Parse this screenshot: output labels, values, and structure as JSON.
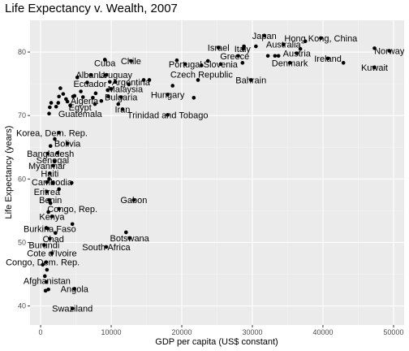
{
  "chart_data": {
    "type": "scatter",
    "title": "Life Expectancy v. Wealth, 2007",
    "xlabel": "GDP per capita (US$ constant)",
    "ylabel": "Life Expectancy (years)",
    "xlim": [
      -1500,
      51500
    ],
    "ylim": [
      37,
      85
    ],
    "xticks": [
      0,
      10000,
      20000,
      30000,
      40000,
      50000
    ],
    "yticks": [
      40,
      50,
      60,
      70,
      80
    ],
    "grid": true,
    "background": "#ebebeb",
    "point_color": "#000000",
    "points": [
      {
        "x": 47300,
        "y": 80.6
      },
      {
        "x": 49400,
        "y": 80.2
      },
      {
        "x": 47300,
        "y": 77.6
      },
      {
        "x": 42900,
        "y": 78.3
      },
      {
        "x": 40700,
        "y": 79.0
      },
      {
        "x": 39700,
        "y": 82.2
      },
      {
        "x": 37500,
        "y": 81.7
      },
      {
        "x": 36800,
        "y": 80.5
      },
      {
        "x": 36300,
        "y": 79.8
      },
      {
        "x": 35300,
        "y": 78.3
      },
      {
        "x": 34400,
        "y": 81.2
      },
      {
        "x": 33700,
        "y": 79.4
      },
      {
        "x": 33200,
        "y": 79.4
      },
      {
        "x": 32200,
        "y": 79.4
      },
      {
        "x": 31700,
        "y": 82.6
      },
      {
        "x": 30500,
        "y": 80.9
      },
      {
        "x": 28800,
        "y": 80.9
      },
      {
        "x": 28700,
        "y": 80.5
      },
      {
        "x": 28600,
        "y": 78.3
      },
      {
        "x": 28000,
        "y": 79.4
      },
      {
        "x": 25200,
        "y": 80.7
      },
      {
        "x": 25500,
        "y": 78.1
      },
      {
        "x": 23700,
        "y": 78.6
      },
      {
        "x": 29800,
        "y": 75.6
      },
      {
        "x": 22800,
        "y": 77.9
      },
      {
        "x": 22300,
        "y": 75.6
      },
      {
        "x": 20500,
        "y": 78.1
      },
      {
        "x": 19300,
        "y": 78.7
      },
      {
        "x": 18700,
        "y": 74.7
      },
      {
        "x": 18000,
        "y": 73.3
      },
      {
        "x": 18000,
        "y": 70.1
      },
      {
        "x": 21700,
        "y": 72.8
      },
      {
        "x": 15400,
        "y": 75.6
      },
      {
        "x": 14600,
        "y": 75.6
      },
      {
        "x": 12800,
        "y": 78.6
      },
      {
        "x": 12500,
        "y": 74.9
      },
      {
        "x": 11400,
        "y": 72.9
      },
      {
        "x": 11000,
        "y": 71.8
      },
      {
        "x": 10600,
        "y": 75.3
      },
      {
        "x": 10000,
        "y": 74.2
      },
      {
        "x": 9800,
        "y": 75.3
      },
      {
        "x": 9500,
        "y": 74.0
      },
      {
        "x": 9600,
        "y": 73.0
      },
      {
        "x": 9300,
        "y": 76.4
      },
      {
        "x": 9100,
        "y": 78.8
      },
      {
        "x": 8600,
        "y": 72.3
      },
      {
        "x": 7800,
        "y": 73.5
      },
      {
        "x": 7700,
        "y": 71.8
      },
      {
        "x": 7400,
        "y": 72.8
      },
      {
        "x": 7100,
        "y": 76.4
      },
      {
        "x": 6600,
        "y": 75.2
      },
      {
        "x": 6000,
        "y": 72.9
      },
      {
        "x": 5700,
        "y": 73.8
      },
      {
        "x": 5200,
        "y": 76.0
      },
      {
        "x": 4800,
        "y": 73.1
      },
      {
        "x": 4600,
        "y": 73.0
      },
      {
        "x": 4200,
        "y": 71.6
      },
      {
        "x": 3800,
        "y": 72.2
      },
      {
        "x": 3600,
        "y": 72.6
      },
      {
        "x": 3200,
        "y": 73.4
      },
      {
        "x": 2800,
        "y": 74.3
      },
      {
        "x": 2600,
        "y": 73.0
      },
      {
        "x": 2500,
        "y": 72.0
      },
      {
        "x": 2200,
        "y": 71.4
      },
      {
        "x": 1500,
        "y": 72.0
      },
      {
        "x": 1300,
        "y": 71.3
      },
      {
        "x": 1200,
        "y": 70.3
      },
      {
        "x": 11600,
        "y": 71.0
      },
      {
        "x": 2600,
        "y": 67.3
      },
      {
        "x": 2000,
        "y": 66.3
      },
      {
        "x": 3800,
        "y": 65.6
      },
      {
        "x": 1400,
        "y": 65.2
      },
      {
        "x": 1000,
        "y": 64.0
      },
      {
        "x": 2400,
        "y": 64.1
      },
      {
        "x": 2000,
        "y": 62.8
      },
      {
        "x": 1800,
        "y": 62.1
      },
      {
        "x": 1300,
        "y": 60.9
      },
      {
        "x": 1200,
        "y": 60.0
      },
      {
        "x": 1700,
        "y": 59.4
      },
      {
        "x": 900,
        "y": 59.5
      },
      {
        "x": 4400,
        "y": 59.4
      },
      {
        "x": 2600,
        "y": 58.4
      },
      {
        "x": 900,
        "y": 58.0
      },
      {
        "x": 1200,
        "y": 56.7
      },
      {
        "x": 1400,
        "y": 56.2
      },
      {
        "x": 13200,
        "y": 56.7
      },
      {
        "x": 2600,
        "y": 55.3
      },
      {
        "x": 1100,
        "y": 54.8
      },
      {
        "x": 1600,
        "y": 54.1
      },
      {
        "x": 4500,
        "y": 52.9
      },
      {
        "x": 800,
        "y": 52.3
      },
      {
        "x": 1000,
        "y": 52.2
      },
      {
        "x": 2100,
        "y": 51.5
      },
      {
        "x": 12100,
        "y": 51.6
      },
      {
        "x": 1300,
        "y": 50.6
      },
      {
        "x": 12600,
        "y": 50.7
      },
      {
        "x": 9300,
        "y": 49.3
      },
      {
        "x": 1600,
        "y": 48.3
      },
      {
        "x": 500,
        "y": 49.6
      },
      {
        "x": 800,
        "y": 46.9
      },
      {
        "x": 300,
        "y": 46.5
      },
      {
        "x": 900,
        "y": 45.7
      },
      {
        "x": 800,
        "y": 43.8
      },
      {
        "x": 600,
        "y": 44.7
      },
      {
        "x": 4800,
        "y": 42.7
      },
      {
        "x": 1100,
        "y": 42.6
      },
      {
        "x": 700,
        "y": 42.4
      },
      {
        "x": 4500,
        "y": 39.6
      }
    ],
    "labels": [
      {
        "text": "Norway",
        "x": 49400,
        "y": 80.2
      },
      {
        "text": "Kuwait",
        "x": 47300,
        "y": 77.6
      },
      {
        "text": "Hong Kong, China",
        "x": 39700,
        "y": 82.2
      },
      {
        "text": "Ireland",
        "x": 40700,
        "y": 79.0
      },
      {
        "text": "Japan",
        "x": 31700,
        "y": 82.6
      },
      {
        "text": "Australia",
        "x": 34400,
        "y": 81.2
      },
      {
        "text": "Austria",
        "x": 36300,
        "y": 79.8
      },
      {
        "text": "Denmark",
        "x": 35300,
        "y": 78.3
      },
      {
        "text": "Israel",
        "x": 25200,
        "y": 80.7
      },
      {
        "text": "Italy",
        "x": 28600,
        "y": 80.5
      },
      {
        "text": "Greece",
        "x": 27500,
        "y": 79.4
      },
      {
        "text": "Portugal",
        "x": 20500,
        "y": 78.1
      },
      {
        "text": "Slovenia",
        "x": 25500,
        "y": 78.1
      },
      {
        "text": "Bahrain",
        "x": 29800,
        "y": 75.6
      },
      {
        "text": "Czech Republic",
        "x": 22800,
        "y": 76.5
      },
      {
        "text": "Cuba",
        "x": 9100,
        "y": 78.3
      },
      {
        "text": "Chile",
        "x": 12800,
        "y": 78.6
      },
      {
        "text": "Hungary",
        "x": 18000,
        "y": 73.3
      },
      {
        "text": "Albania",
        "x": 7100,
        "y": 76.4
      },
      {
        "text": "Uruguay",
        "x": 10600,
        "y": 76.4
      },
      {
        "text": "Ecuador",
        "x": 7000,
        "y": 75.0
      },
      {
        "text": "Argentina",
        "x": 12800,
        "y": 75.3
      },
      {
        "text": "Malaysia",
        "x": 12000,
        "y": 74.2
      },
      {
        "text": "Bulgaria",
        "x": 11400,
        "y": 72.9
      },
      {
        "text": "Iran",
        "x": 11600,
        "y": 71.0
      },
      {
        "text": "Trinidad and Tobago",
        "x": 18000,
        "y": 70.1
      },
      {
        "text": "Algeria",
        "x": 6200,
        "y": 72.3
      },
      {
        "text": "Egypt",
        "x": 5600,
        "y": 71.3
      },
      {
        "text": "Guatemala",
        "x": 5600,
        "y": 70.3
      },
      {
        "text": "Korea, Dem. Rep.",
        "x": 1600,
        "y": 67.3
      },
      {
        "text": "Bolivia",
        "x": 3800,
        "y": 65.6
      },
      {
        "text": "Bangladesh",
        "x": 1400,
        "y": 64.0
      },
      {
        "text": "Senegal",
        "x": 1700,
        "y": 63.0
      },
      {
        "text": "Myanmar",
        "x": 900,
        "y": 62.1
      },
      {
        "text": "Haiti",
        "x": 1300,
        "y": 60.9
      },
      {
        "text": "Cambodia",
        "x": 1600,
        "y": 59.5
      },
      {
        "text": "Eritrea",
        "x": 900,
        "y": 58.0
      },
      {
        "text": "Benin",
        "x": 1400,
        "y": 56.7
      },
      {
        "text": "Gabon",
        "x": 13200,
        "y": 56.7
      },
      {
        "text": "Congo, Rep.",
        "x": 4500,
        "y": 55.3
      },
      {
        "text": "Kenya",
        "x": 1600,
        "y": 54.1
      },
      {
        "text": "Burkina Faso",
        "x": 1300,
        "y": 52.2
      },
      {
        "text": "Chad",
        "x": 1800,
        "y": 50.6
      },
      {
        "text": "Botswana",
        "x": 12600,
        "y": 50.7
      },
      {
        "text": "Burundi",
        "x": 500,
        "y": 49.6
      },
      {
        "text": "South Africa",
        "x": 9300,
        "y": 49.3
      },
      {
        "text": "Cote d'Ivoire",
        "x": 1600,
        "y": 48.3
      },
      {
        "text": "Congo, Dem. Rep.",
        "x": 300,
        "y": 46.9
      },
      {
        "text": "Afghanistan",
        "x": 900,
        "y": 44.0
      },
      {
        "text": "Angola",
        "x": 4800,
        "y": 42.7
      },
      {
        "text": "Swaziland",
        "x": 4500,
        "y": 39.6
      }
    ]
  }
}
